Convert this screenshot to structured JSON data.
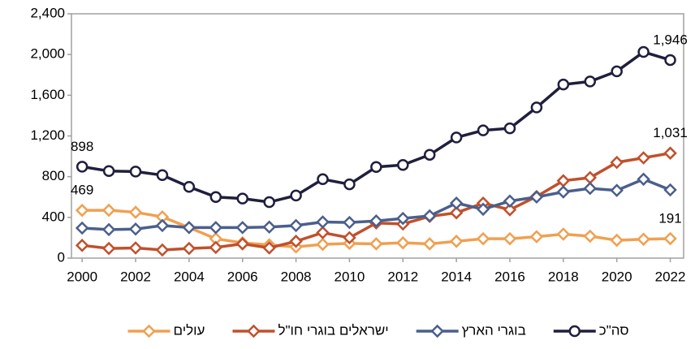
{
  "chart_data": {
    "type": "line",
    "x": [
      2000,
      2001,
      2002,
      2003,
      2004,
      2005,
      2006,
      2007,
      2008,
      2009,
      2010,
      2011,
      2012,
      2013,
      2014,
      2015,
      2016,
      2017,
      2018,
      2019,
      2020,
      2021,
      2022
    ],
    "xlim": [
      1999.6,
      2022.5
    ],
    "xticks": [
      2000,
      2002,
      2004,
      2006,
      2008,
      2010,
      2012,
      2014,
      2016,
      2018,
      2020,
      2022
    ],
    "ylim": [
      0,
      2400
    ],
    "yticks": [
      0,
      400,
      800,
      {
        "value": 1200,
        "label": "1,200"
      },
      {
        "value": 1600,
        "label": "1,600"
      },
      {
        "value": 2000,
        "label": "2,000"
      },
      {
        "value": 2400,
        "label": "2,400"
      }
    ],
    "grid": false,
    "legend": "bottom",
    "series": [
      {
        "name": "סה\"כ",
        "color": "#1f1f3d",
        "marker": "circle",
        "values": [
          898,
          855,
          850,
          815,
          700,
          600,
          585,
          550,
          615,
          775,
          725,
          895,
          915,
          1015,
          1185,
          1255,
          1275,
          1480,
          1705,
          1735,
          1835,
          2025,
          1946
        ],
        "value_labels": [
          "898",
          null,
          null,
          null,
          null,
          null,
          null,
          null,
          null,
          null,
          null,
          null,
          null,
          null,
          null,
          null,
          null,
          null,
          null,
          null,
          null,
          null,
          "1,946"
        ]
      },
      {
        "name": "בוגרי הארץ",
        "color": "#4a5f8c",
        "marker": "diamond",
        "values": [
          295,
          280,
          285,
          320,
          300,
          300,
          300,
          305,
          320,
          355,
          350,
          365,
          390,
          415,
          540,
          480,
          560,
          600,
          650,
          685,
          665,
          775,
          670
        ]
      },
      {
        "name": "ישראלים בוגרי חו\"ל",
        "color": "#c0502b",
        "marker": "diamond",
        "values": [
          125,
          95,
          100,
          80,
          95,
          105,
          140,
          100,
          165,
          250,
          200,
          345,
          335,
          410,
          445,
          540,
          475,
          605,
          760,
          790,
          940,
          985,
          1031
        ],
        "value_labels": [
          null,
          null,
          null,
          null,
          null,
          null,
          null,
          null,
          null,
          null,
          null,
          null,
          null,
          null,
          null,
          null,
          null,
          null,
          null,
          null,
          null,
          null,
          "1,031"
        ]
      },
      {
        "name": "עולים",
        "color": "#f0a050",
        "marker": "diamond",
        "values": [
          469,
          470,
          450,
          405,
          300,
          190,
          150,
          130,
          110,
          135,
          145,
          140,
          150,
          140,
          165,
          190,
          190,
          210,
          235,
          215,
          175,
          185,
          191
        ],
        "value_labels": [
          "469",
          null,
          null,
          null,
          null,
          null,
          null,
          null,
          null,
          null,
          null,
          null,
          null,
          null,
          null,
          null,
          null,
          null,
          null,
          null,
          null,
          null,
          "191"
        ]
      }
    ]
  }
}
